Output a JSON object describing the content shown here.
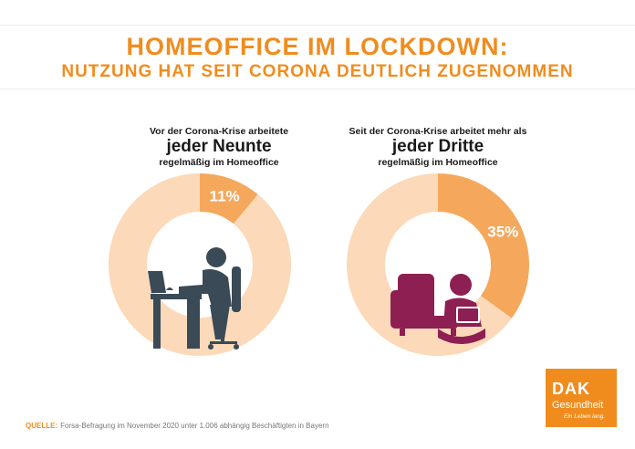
{
  "title_line1": "HOMEOFFICE IM LOCKDOWN:",
  "title_line2": "NUTZUNG HAT SEIT CORONA DEUTLICH ZUGENOMMEN",
  "left": {
    "line1": "Vor der Corona-Krise arbeitete",
    "emphasis": "jeder Neunte",
    "line3": "regelmäßig im Homeoffice",
    "icon": "person-at-desk-icon"
  },
  "right": {
    "line1": "Seit der Corona-Krise arbeitet mehr als",
    "emphasis": "jeder Dritte",
    "line3": "regelmäßig im Homeoffice",
    "icon": "person-on-sofa-with-laptop-icon"
  },
  "source": {
    "label": "QUELLE:",
    "text": "Forsa-Befragung im November 2020 unter 1.006 abhängig Beschäftigten in Bayern"
  },
  "logo": {
    "brand": "DAK",
    "name": "Gesundheit",
    "slogan": "Ein Leben lang."
  },
  "colors": {
    "accent": "#f08c1e",
    "slice_highlight": "#f5a85c",
    "slice_rest": "#fcd9b8",
    "icon_left": "#3a4a57",
    "icon_right": "#8e1f52"
  },
  "chart_data": [
    {
      "type": "pie",
      "slices": [
        {
          "label": "11%",
          "value": 11
        },
        {
          "value": 89
        }
      ]
    },
    {
      "type": "pie",
      "slices": [
        {
          "label": "35%",
          "value": 35
        },
        {
          "value": 65
        }
      ]
    }
  ]
}
